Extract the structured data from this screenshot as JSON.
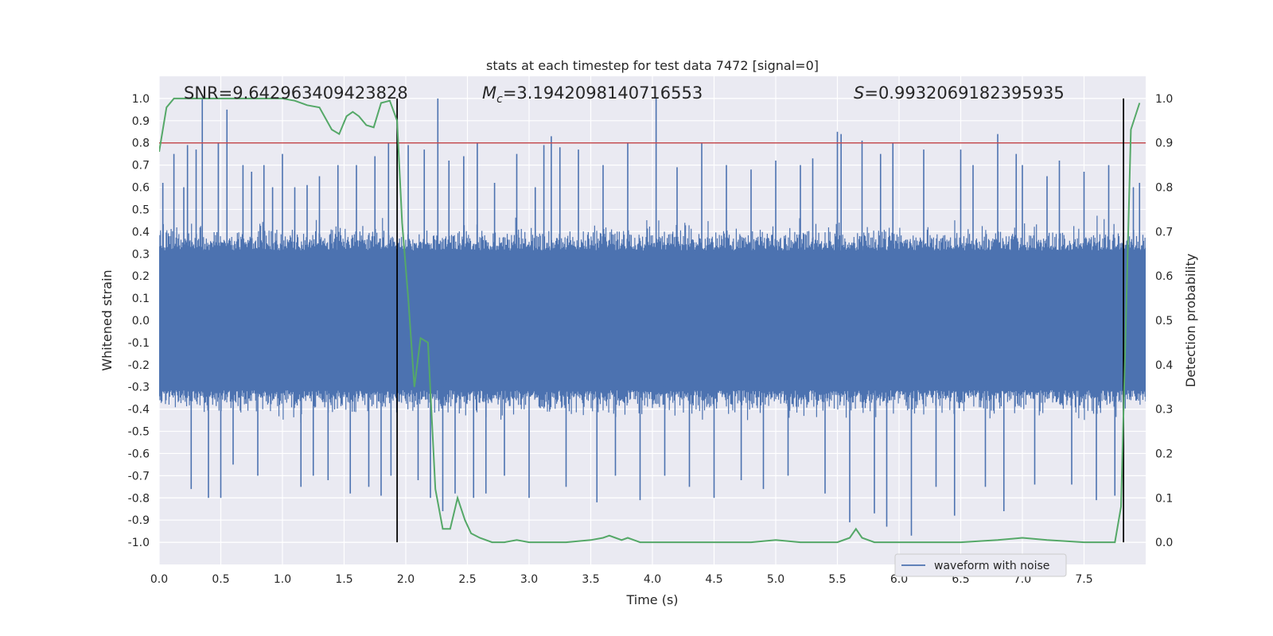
{
  "chart_data": {
    "type": "line",
    "title": "stats at each timestep for test data 7472 [signal=0]",
    "xlabel": "Time (s)",
    "ylabel": "Whitened strain",
    "y2label": "Detection probability",
    "xlim": [
      0.0,
      8.0
    ],
    "ylim": [
      -1.1,
      1.1
    ],
    "y2lim": [
      -0.05,
      1.05
    ],
    "xticks": [
      "0.0",
      "0.5",
      "1.0",
      "1.5",
      "2.0",
      "2.5",
      "3.0",
      "3.5",
      "4.0",
      "4.5",
      "5.0",
      "5.5",
      "6.0",
      "6.5",
      "7.0",
      "7.5"
    ],
    "yticks": [
      "1.0",
      "0.9",
      "0.8",
      "0.7",
      "0.6",
      "0.5",
      "0.4",
      "0.3",
      "0.2",
      "0.1",
      "0.0",
      "-0.1",
      "-0.2",
      "-0.3",
      "-0.4",
      "-0.5",
      "-0.6",
      "-0.7",
      "-0.8",
      "-0.9",
      "-1.0"
    ],
    "y2ticks": [
      "1.0",
      "0.9",
      "0.8",
      "0.7",
      "0.6",
      "0.5",
      "0.4",
      "0.3",
      "0.2",
      "0.1",
      "0.0"
    ],
    "grid": true,
    "legend_position": "lower-right",
    "annotations": {
      "snr": "SNR=9.642963409423828",
      "mc_symbol": "M",
      "mc_sub": "c",
      "mc_value": "=3.1942098140716553",
      "s_symbol": "S",
      "s_value": "=0.9932069182395935"
    },
    "threshold": {
      "axis": "y2",
      "value": 0.9,
      "color": "#c44e52"
    },
    "vlines": [
      1.93,
      7.82
    ],
    "series": [
      {
        "name": "waveform with noise",
        "axis": "y",
        "kind": "noise",
        "color": "#4c72b0",
        "envelope_typical": 0.45,
        "spikes": [
          [
            0.03,
            0.62
          ],
          [
            0.12,
            0.75
          ],
          [
            0.2,
            0.6
          ],
          [
            0.23,
            0.79
          ],
          [
            0.26,
            -0.76
          ],
          [
            0.3,
            0.77
          ],
          [
            0.35,
            1.0
          ],
          [
            0.4,
            -0.8
          ],
          [
            0.48,
            0.8
          ],
          [
            0.5,
            -0.8
          ],
          [
            0.55,
            0.95
          ],
          [
            0.6,
            -0.65
          ],
          [
            0.68,
            0.7
          ],
          [
            0.75,
            0.67
          ],
          [
            0.8,
            -0.7
          ],
          [
            0.85,
            0.7
          ],
          [
            0.92,
            0.6
          ],
          [
            1.0,
            0.75
          ],
          [
            1.1,
            0.6
          ],
          [
            1.15,
            -0.75
          ],
          [
            1.2,
            0.61
          ],
          [
            1.25,
            -0.7
          ],
          [
            1.3,
            0.65
          ],
          [
            1.37,
            -0.72
          ],
          [
            1.45,
            0.7
          ],
          [
            1.55,
            -0.78
          ],
          [
            1.6,
            0.7
          ],
          [
            1.7,
            -0.75
          ],
          [
            1.75,
            0.74
          ],
          [
            1.8,
            -0.79
          ],
          [
            1.86,
            0.8
          ],
          [
            1.88,
            -0.7
          ],
          [
            2.02,
            0.79
          ],
          [
            2.1,
            -0.72
          ],
          [
            2.15,
            0.77
          ],
          [
            2.2,
            -0.8
          ],
          [
            2.26,
            1.0
          ],
          [
            2.3,
            -0.86
          ],
          [
            2.35,
            0.72
          ],
          [
            2.4,
            -0.78
          ],
          [
            2.47,
            0.74
          ],
          [
            2.55,
            -0.8
          ],
          [
            2.58,
            0.8
          ],
          [
            2.65,
            -0.78
          ],
          [
            2.72,
            0.62
          ],
          [
            2.8,
            -0.7
          ],
          [
            2.9,
            0.75
          ],
          [
            3.0,
            -0.8
          ],
          [
            3.05,
            0.6
          ],
          [
            3.12,
            0.79
          ],
          [
            3.18,
            0.83
          ],
          [
            3.25,
            0.78
          ],
          [
            3.3,
            -0.75
          ],
          [
            3.4,
            0.77
          ],
          [
            3.55,
            -0.82
          ],
          [
            3.6,
            0.7
          ],
          [
            3.7,
            -0.7
          ],
          [
            3.8,
            0.8
          ],
          [
            3.9,
            -0.81
          ],
          [
            4.03,
            1.0
          ],
          [
            4.1,
            -0.7
          ],
          [
            4.2,
            0.69
          ],
          [
            4.3,
            -0.75
          ],
          [
            4.4,
            0.8
          ],
          [
            4.5,
            -0.8
          ],
          [
            4.6,
            0.7
          ],
          [
            4.72,
            -0.72
          ],
          [
            4.8,
            0.68
          ],
          [
            4.9,
            -0.76
          ],
          [
            5.0,
            0.72
          ],
          [
            5.1,
            -0.7
          ],
          [
            5.2,
            0.7
          ],
          [
            5.3,
            0.73
          ],
          [
            5.4,
            -0.78
          ],
          [
            5.5,
            0.85
          ],
          [
            5.53,
            0.84
          ],
          [
            5.6,
            -0.91
          ],
          [
            5.7,
            0.81
          ],
          [
            5.8,
            -0.87
          ],
          [
            5.85,
            0.75
          ],
          [
            5.9,
            -0.93
          ],
          [
            5.95,
            0.8
          ],
          [
            6.1,
            -0.97
          ],
          [
            6.2,
            0.77
          ],
          [
            6.3,
            -0.75
          ],
          [
            6.45,
            -0.88
          ],
          [
            6.5,
            0.77
          ],
          [
            6.6,
            0.7
          ],
          [
            6.7,
            -0.75
          ],
          [
            6.8,
            0.84
          ],
          [
            6.85,
            -0.86
          ],
          [
            6.95,
            0.75
          ],
          [
            7.0,
            0.7
          ],
          [
            7.1,
            -0.74
          ],
          [
            7.2,
            0.65
          ],
          [
            7.3,
            0.72
          ],
          [
            7.4,
            -0.74
          ],
          [
            7.5,
            0.67
          ],
          [
            7.6,
            -0.81
          ],
          [
            7.7,
            0.7
          ],
          [
            7.75,
            -0.79
          ],
          [
            7.9,
            0.6
          ],
          [
            7.95,
            0.62
          ]
        ]
      },
      {
        "name": "",
        "axis": "y2",
        "kind": "line",
        "color": "#55a868",
        "x": [
          0.0,
          0.06,
          0.12,
          0.2,
          0.4,
          0.6,
          0.8,
          1.0,
          1.1,
          1.2,
          1.3,
          1.4,
          1.46,
          1.52,
          1.57,
          1.62,
          1.68,
          1.74,
          1.8,
          1.87,
          1.93,
          1.97,
          2.02,
          2.07,
          2.12,
          2.18,
          2.24,
          2.3,
          2.36,
          2.42,
          2.48,
          2.53,
          2.6,
          2.7,
          2.8,
          2.9,
          3.0,
          3.1,
          3.3,
          3.5,
          3.6,
          3.65,
          3.7,
          3.75,
          3.8,
          3.85,
          3.9,
          4.0,
          4.2,
          4.5,
          4.8,
          5.0,
          5.2,
          5.5,
          5.6,
          5.65,
          5.7,
          5.75,
          5.8,
          5.9,
          6.0,
          6.2,
          6.5,
          6.8,
          7.0,
          7.2,
          7.5,
          7.75,
          7.8,
          7.83,
          7.88,
          7.95
        ],
        "y": [
          0.88,
          0.98,
          1.0,
          1.0,
          1.0,
          1.0,
          1.0,
          1.0,
          0.995,
          0.985,
          0.98,
          0.93,
          0.92,
          0.96,
          0.97,
          0.96,
          0.94,
          0.935,
          0.99,
          0.995,
          0.95,
          0.72,
          0.55,
          0.35,
          0.46,
          0.45,
          0.12,
          0.03,
          0.03,
          0.1,
          0.05,
          0.02,
          0.01,
          0.0,
          0.0,
          0.005,
          0.0,
          0.0,
          0.0,
          0.005,
          0.01,
          0.015,
          0.01,
          0.005,
          0.01,
          0.005,
          0.0,
          0.0,
          0.0,
          0.0,
          0.0,
          0.005,
          0.0,
          0.0,
          0.01,
          0.03,
          0.01,
          0.005,
          0.0,
          0.0,
          0.0,
          0.0,
          0.0,
          0.005,
          0.01,
          0.005,
          0.0,
          0.0,
          0.08,
          0.4,
          0.93,
          0.99
        ]
      }
    ]
  }
}
